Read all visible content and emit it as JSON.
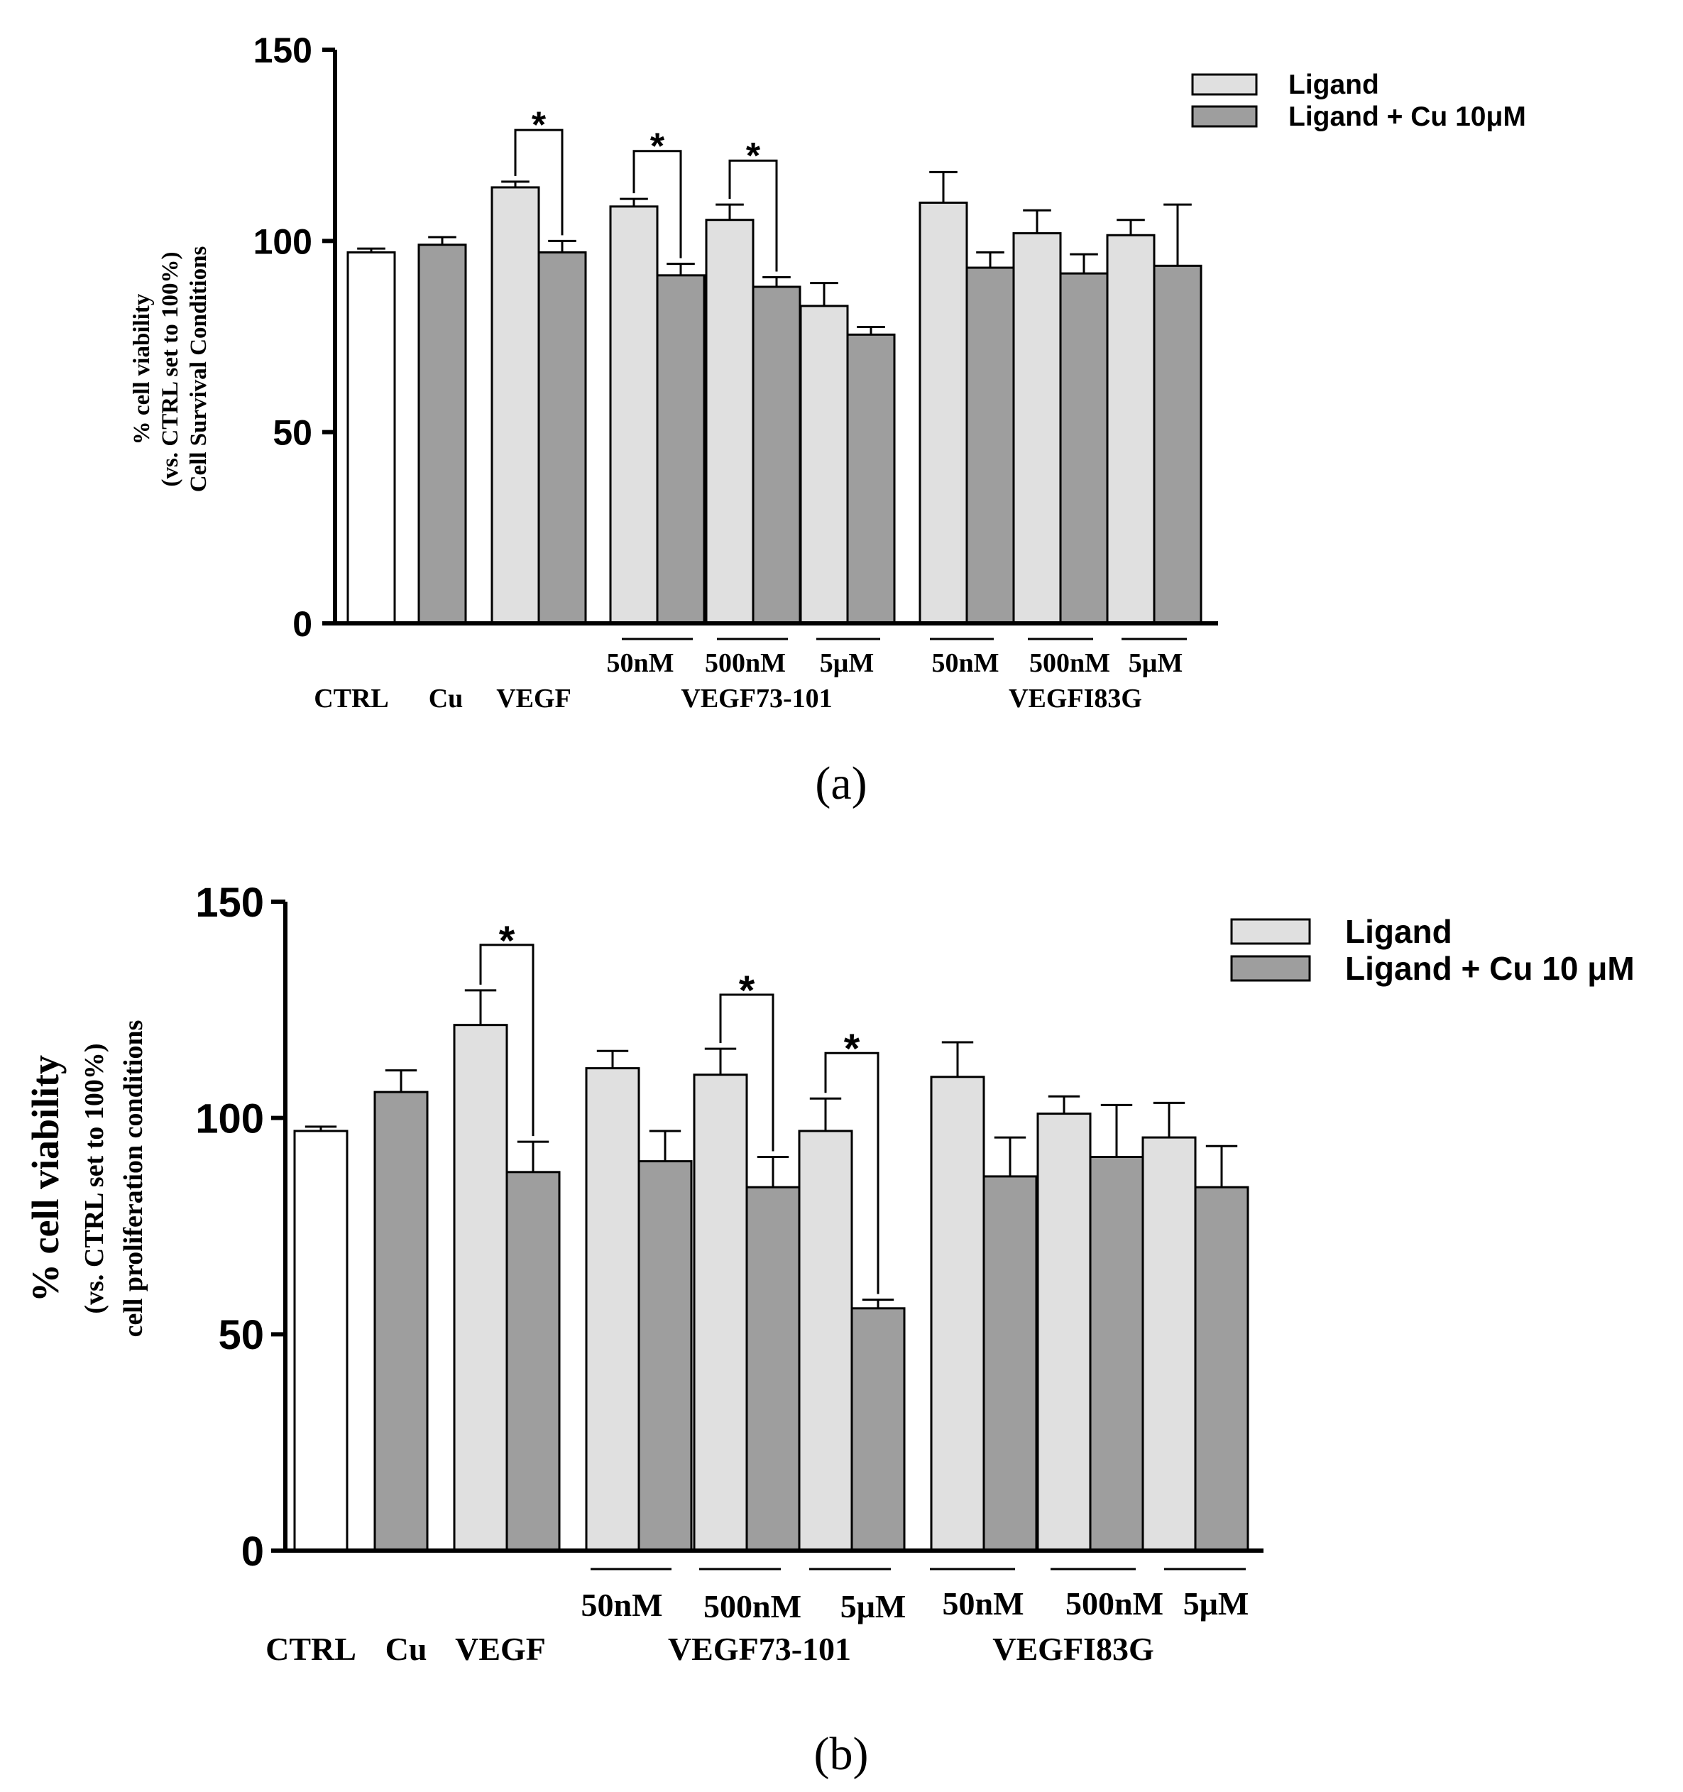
{
  "colors": {
    "ctrl": "#ffffff",
    "ligand": "#e0e0e0",
    "ligand_cu": "#9e9e9e",
    "stroke": "#000000"
  },
  "chart_data": [
    {
      "id": "a",
      "type": "bar",
      "caption": "(a)",
      "ylabel_lines": [
        "% cell viability",
        "(vs. CTRL set to 100%)",
        "Cell Survival Conditions"
      ],
      "ylim": [
        0,
        150
      ],
      "yticks": [
        "0",
        "50",
        "100",
        "150"
      ],
      "legend": {
        "placement": "top-right",
        "entries": [
          "Ligand",
          "Ligand + Cu 10μM"
        ]
      },
      "categories": [
        "CTRL",
        "Cu",
        "VEGF",
        "VEGF73-101",
        "VEGFI83G"
      ],
      "sublabels": [
        "50nM",
        "500nM",
        "5μM",
        "50nM",
        "500nM",
        "5μM"
      ],
      "bars": [
        {
          "label": "CTRL",
          "series": "ctrl",
          "value": 97,
          "error": 1
        },
        {
          "label": "Cu",
          "series": "ligand_cu",
          "value": 99,
          "error": 2
        },
        {
          "label": "VEGF",
          "series": "ligand",
          "value": 114,
          "error": 1.5
        },
        {
          "label": "VEGF",
          "series": "ligand_cu",
          "value": 97,
          "error": 3
        },
        {
          "label": "VEGF73-101 50nM",
          "series": "ligand",
          "value": 109,
          "error": 2
        },
        {
          "label": "VEGF73-101 50nM",
          "series": "ligand_cu",
          "value": 91,
          "error": 3
        },
        {
          "label": "VEGF73-101 500nM",
          "series": "ligand",
          "value": 105.5,
          "error": 4
        },
        {
          "label": "VEGF73-101 500nM",
          "series": "ligand_cu",
          "value": 88,
          "error": 2.5
        },
        {
          "label": "VEGF73-101 5μM",
          "series": "ligand",
          "value": 83,
          "error": 6
        },
        {
          "label": "VEGF73-101 5μM",
          "series": "ligand_cu",
          "value": 75.5,
          "error": 2
        },
        {
          "label": "VEGFI83G 50nM",
          "series": "ligand",
          "value": 110,
          "error": 8
        },
        {
          "label": "VEGFI83G 50nM",
          "series": "ligand_cu",
          "value": 93,
          "error": 4
        },
        {
          "label": "VEGFI83G 500nM",
          "series": "ligand",
          "value": 102,
          "error": 6
        },
        {
          "label": "VEGFI83G 500nM",
          "series": "ligand_cu",
          "value": 91.5,
          "error": 5
        },
        {
          "label": "VEGFI83G 5μM",
          "series": "ligand",
          "value": 101.5,
          "error": 4
        },
        {
          "label": "VEGFI83G 5μM",
          "series": "ligand_cu",
          "value": 93.5,
          "error": 16
        }
      ],
      "significance": [
        {
          "label": "*",
          "bars": [
            2,
            3
          ],
          "level": 129
        },
        {
          "label": "*",
          "bars": [
            4,
            5
          ],
          "level": 123.5
        },
        {
          "label": "*",
          "bars": [
            6,
            7
          ],
          "level": 121
        }
      ]
    },
    {
      "id": "b",
      "type": "bar",
      "caption": "(b)",
      "ylabel_lines": [
        "% cell viability",
        "(vs. CTRL set to 100%)",
        "cell proliferation conditions"
      ],
      "ylim": [
        0,
        150
      ],
      "yticks": [
        "0",
        "50",
        "100",
        "150"
      ],
      "legend": {
        "placement": "top-right",
        "entries": [
          "Ligand",
          "Ligand + Cu 10 μM"
        ]
      },
      "categories": [
        "CTRL",
        "Cu",
        "VEGF",
        "VEGF73-101",
        "VEGFI83G"
      ],
      "sublabels": [
        "50nM",
        "500nM",
        "5μM",
        "50nM",
        "500nM",
        "5μM"
      ],
      "bars": [
        {
          "label": "CTRL",
          "series": "ctrl",
          "value": 97,
          "error": 1
        },
        {
          "label": "Cu",
          "series": "ligand_cu",
          "value": 106,
          "error": 5
        },
        {
          "label": "VEGF",
          "series": "ligand",
          "value": 121.5,
          "error": 8
        },
        {
          "label": "VEGF",
          "series": "ligand_cu",
          "value": 87.5,
          "error": 7
        },
        {
          "label": "VEGF73-101 50nM",
          "series": "ligand",
          "value": 111.5,
          "error": 4
        },
        {
          "label": "VEGF73-101 50nM",
          "series": "ligand_cu",
          "value": 90,
          "error": 7
        },
        {
          "label": "VEGF73-101 500nM",
          "series": "ligand",
          "value": 110,
          "error": 6
        },
        {
          "label": "VEGF73-101 500nM",
          "series": "ligand_cu",
          "value": 84,
          "error": 7
        },
        {
          "label": "VEGF73-101 5μM",
          "series": "ligand",
          "value": 97,
          "error": 7.5
        },
        {
          "label": "VEGF73-101 5μM",
          "series": "ligand_cu",
          "value": 56,
          "error": 2
        },
        {
          "label": "VEGFI83G 50nM",
          "series": "ligand",
          "value": 109.5,
          "error": 8
        },
        {
          "label": "VEGFI83G 50nM",
          "series": "ligand_cu",
          "value": 86.5,
          "error": 9
        },
        {
          "label": "VEGFI83G 500nM",
          "series": "ligand",
          "value": 101,
          "error": 4
        },
        {
          "label": "VEGFI83G 500nM",
          "series": "ligand_cu",
          "value": 91,
          "error": 12
        },
        {
          "label": "VEGFI83G 5μM",
          "series": "ligand",
          "value": 95.5,
          "error": 8
        },
        {
          "label": "VEGFI83G 5μM",
          "series": "ligand_cu",
          "value": 84,
          "error": 9.5
        }
      ],
      "significance": [
        {
          "label": "*",
          "bars": [
            2,
            3
          ],
          "level": 140
        },
        {
          "label": "*",
          "bars": [
            6,
            7
          ],
          "level": 128.5
        },
        {
          "label": "*",
          "bars": [
            8,
            9
          ],
          "level": 115
        }
      ]
    }
  ]
}
